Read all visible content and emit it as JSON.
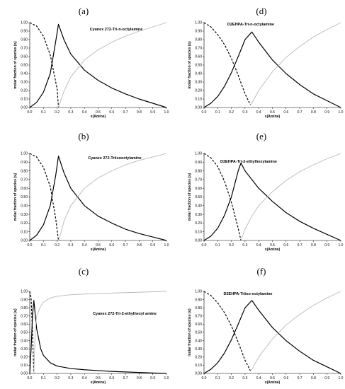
{
  "panel_letters": [
    "(a)",
    "(b)",
    "(c)",
    "(d)",
    "(e)",
    "(f)"
  ],
  "chart_data": [
    {
      "type": "line",
      "letter": "(a)",
      "title": "Cyanex 272-Tri-n-octylamine",
      "xlabel": "x(Amine)",
      "ylabel": "molar fraction of species (xᵢ)",
      "xlim": [
        0,
        1
      ],
      "ylim": [
        0,
        1
      ],
      "grid": false,
      "legend": "none",
      "xticks": [
        "0.0",
        "0.1",
        "0.2",
        "0.3",
        "0.4",
        "0.5",
        "0.6",
        "0.7",
        "0.8",
        "0.9",
        "1.0"
      ],
      "yticks": [
        "0.00",
        "0.10",
        "0.20",
        "0.30",
        "0.40",
        "0.50",
        "0.60",
        "0.70",
        "0.80",
        "0.90",
        "1.00"
      ],
      "series": [
        {
          "style": "dashed",
          "color": "#000000",
          "x": [
            0,
            0.05,
            0.1,
            0.15,
            0.2,
            0.21
          ],
          "y": [
            1.0,
            0.96,
            0.84,
            0.62,
            0.22,
            0.0
          ]
        },
        {
          "style": "solid",
          "color": "#000000",
          "x": [
            0,
            0.05,
            0.1,
            0.15,
            0.19,
            0.21,
            0.25,
            0.3,
            0.4,
            0.5,
            0.6,
            0.7,
            0.8,
            0.9,
            1.0
          ],
          "y": [
            0.0,
            0.06,
            0.18,
            0.4,
            0.78,
            0.98,
            0.8,
            0.63,
            0.44,
            0.32,
            0.23,
            0.16,
            0.1,
            0.05,
            0.0
          ]
        },
        {
          "style": "solid",
          "color": "#b8b8b8",
          "x": [
            0.21,
            0.23,
            0.25,
            0.3,
            0.4,
            0.5,
            0.6,
            0.7,
            0.8,
            0.9,
            1.0
          ],
          "y": [
            0.0,
            0.1,
            0.19,
            0.36,
            0.56,
            0.68,
            0.77,
            0.84,
            0.9,
            0.95,
            1.0
          ]
        }
      ]
    },
    {
      "type": "line",
      "letter": "(b)",
      "title": "Cyanex 272-Triisooctylamine",
      "xlabel": "x(Amine)",
      "ylabel": "molar fraction of species (xᵢ)",
      "xlim": [
        0,
        1
      ],
      "ylim": [
        0,
        1
      ],
      "grid": false,
      "legend": "none",
      "xticks": [
        "0.0",
        "0.1",
        "0.2",
        "0.3",
        "0.4",
        "0.5",
        "0.6",
        "0.7",
        "0.8",
        "0.9",
        "1.0"
      ],
      "yticks": [
        "0.00",
        "0.10",
        "0.20",
        "0.30",
        "0.40",
        "0.50",
        "0.60",
        "0.70",
        "0.80",
        "0.90",
        "1.00"
      ],
      "series": [
        {
          "style": "dashed",
          "color": "#000000",
          "x": [
            0,
            0.05,
            0.1,
            0.15,
            0.19,
            0.21
          ],
          "y": [
            1.0,
            0.96,
            0.84,
            0.62,
            0.25,
            0.0
          ]
        },
        {
          "style": "solid",
          "color": "#000000",
          "x": [
            0,
            0.05,
            0.1,
            0.15,
            0.19,
            0.21,
            0.25,
            0.3,
            0.4,
            0.5,
            0.6,
            0.7,
            0.8,
            0.9,
            1.0
          ],
          "y": [
            0.0,
            0.06,
            0.18,
            0.4,
            0.75,
            0.97,
            0.78,
            0.6,
            0.4,
            0.28,
            0.2,
            0.13,
            0.08,
            0.04,
            0.0
          ]
        },
        {
          "style": "solid",
          "color": "#b8b8b8",
          "x": [
            0.21,
            0.23,
            0.25,
            0.3,
            0.4,
            0.5,
            0.6,
            0.7,
            0.8,
            0.9,
            1.0
          ],
          "y": [
            0.0,
            0.1,
            0.22,
            0.4,
            0.6,
            0.72,
            0.8,
            0.87,
            0.92,
            0.96,
            1.0
          ]
        }
      ]
    },
    {
      "type": "line",
      "letter": "(c)",
      "title": "Cyanex 272-Tri-2-ethylhexyl amine",
      "xlabel": "x(Amine)",
      "ylabel": "molar fraction of species (xᵢ)",
      "xlim": [
        0,
        1
      ],
      "ylim": [
        0,
        1
      ],
      "grid": false,
      "legend": "none",
      "xticks": [
        "0.0",
        "0.1",
        "0.2",
        "0.3",
        "0.4",
        "0.5",
        "0.6",
        "0.7",
        "0.8",
        "0.9",
        "1.0"
      ],
      "yticks": [
        "0.00",
        "0.10",
        "0.20",
        "0.30",
        "0.40",
        "0.50",
        "0.60",
        "0.70",
        "0.80",
        "0.90",
        "1.00"
      ],
      "series": [
        {
          "style": "dashed",
          "color": "#000000",
          "x": [
            0,
            0.01,
            0.02,
            0.03
          ],
          "y": [
            1.0,
            0.92,
            0.5,
            0.0
          ]
        },
        {
          "style": "solid",
          "color": "#000000",
          "x": [
            0,
            0.01,
            0.02,
            0.03,
            0.05,
            0.08,
            0.1,
            0.15,
            0.2,
            0.3,
            0.4,
            0.5,
            0.6,
            0.7,
            0.8,
            0.9,
            1.0
          ],
          "y": [
            0.0,
            0.3,
            0.7,
            0.89,
            0.55,
            0.3,
            0.22,
            0.13,
            0.09,
            0.06,
            0.045,
            0.035,
            0.025,
            0.018,
            0.012,
            0.006,
            0.0
          ]
        },
        {
          "style": "solid",
          "color": "#b8b8b8",
          "x": [
            0.03,
            0.04,
            0.05,
            0.08,
            0.1,
            0.15,
            0.2,
            0.3,
            0.5,
            0.7,
            1.0
          ],
          "y": [
            0.0,
            0.5,
            0.7,
            0.82,
            0.87,
            0.92,
            0.94,
            0.96,
            0.975,
            0.985,
            1.0
          ]
        }
      ]
    },
    {
      "type": "line",
      "letter": "(d)",
      "title": "D2EHPA-Tri-n-octylamine",
      "xlabel": "x(Amine)",
      "ylabel": "molar fraction of species (xᵢ)",
      "xlim": [
        0,
        1
      ],
      "ylim": [
        0,
        1
      ],
      "grid": false,
      "legend": "none",
      "xticks": [
        "0.0",
        "0.1",
        "0.2",
        "0.3",
        "0.4",
        "0.5",
        "0.6",
        "0.7",
        "0.8",
        "0.9",
        "1.0"
      ],
      "yticks": [
        "0.00",
        "0.10",
        "0.20",
        "0.30",
        "0.40",
        "0.50",
        "0.60",
        "0.70",
        "0.80",
        "0.90",
        "1.00"
      ],
      "series": [
        {
          "style": "dashed",
          "color": "#000000",
          "x": [
            0,
            0.05,
            0.1,
            0.15,
            0.2,
            0.25,
            0.3,
            0.34
          ],
          "y": [
            1.0,
            0.95,
            0.86,
            0.74,
            0.58,
            0.38,
            0.16,
            0.03
          ]
        },
        {
          "style": "solid",
          "color": "#000000",
          "x": [
            0,
            0.05,
            0.1,
            0.15,
            0.2,
            0.25,
            0.3,
            0.35,
            0.4,
            0.5,
            0.6,
            0.7,
            0.8,
            0.9,
            1.0
          ],
          "y": [
            0.0,
            0.05,
            0.13,
            0.25,
            0.41,
            0.6,
            0.8,
            0.89,
            0.77,
            0.56,
            0.4,
            0.27,
            0.16,
            0.08,
            0.0
          ]
        },
        {
          "style": "solid",
          "color": "#b8b8b8",
          "x": [
            0.34,
            0.35,
            0.4,
            0.5,
            0.6,
            0.7,
            0.8,
            0.9,
            1.0
          ],
          "y": [
            0.03,
            0.05,
            0.2,
            0.42,
            0.59,
            0.72,
            0.83,
            0.92,
            1.0
          ]
        }
      ]
    },
    {
      "type": "line",
      "letter": "(e)",
      "title": "D2EHPA-Tri-2-ethylhexylamine",
      "xlabel": "x(Amine)",
      "ylabel": "molar fraction of species (xᵢ)",
      "xlim": [
        0,
        1
      ],
      "ylim": [
        0,
        1
      ],
      "grid": false,
      "legend": "none",
      "xticks": [
        "0.0",
        "0.1",
        "0.2",
        "0.3",
        "0.4",
        "0.5",
        "0.6",
        "0.7",
        "0.8",
        "0.9",
        "1.0"
      ],
      "yticks": [
        "0.00",
        "0.10",
        "0.20",
        "0.30",
        "0.40",
        "0.50",
        "0.60",
        "0.70",
        "0.80",
        "0.90",
        "1.00"
      ],
      "series": [
        {
          "style": "dashed",
          "color": "#000000",
          "x": [
            0,
            0.05,
            0.1,
            0.15,
            0.2,
            0.25,
            0.27
          ],
          "y": [
            1.0,
            0.95,
            0.85,
            0.68,
            0.44,
            0.14,
            0.0
          ]
        },
        {
          "style": "solid",
          "color": "#000000",
          "x": [
            0,
            0.05,
            0.1,
            0.15,
            0.2,
            0.25,
            0.27,
            0.3,
            0.4,
            0.5,
            0.6,
            0.7,
            0.8,
            0.9,
            1.0
          ],
          "y": [
            0.0,
            0.05,
            0.14,
            0.29,
            0.5,
            0.8,
            0.89,
            0.8,
            0.6,
            0.45,
            0.32,
            0.22,
            0.14,
            0.07,
            0.0
          ]
        },
        {
          "style": "solid",
          "color": "#b8b8b8",
          "x": [
            0.27,
            0.3,
            0.35,
            0.4,
            0.5,
            0.6,
            0.7,
            0.8,
            0.9,
            1.0
          ],
          "y": [
            0.0,
            0.13,
            0.28,
            0.4,
            0.56,
            0.69,
            0.79,
            0.87,
            0.94,
            1.0
          ]
        }
      ]
    },
    {
      "type": "line",
      "letter": "(f)",
      "title": "D2EHPA-Triiso-octylamine",
      "xlabel": "x(Amine)",
      "ylabel": "molar fraction of species (xᵢ)",
      "xlim": [
        0,
        1
      ],
      "ylim": [
        0,
        1
      ],
      "grid": false,
      "legend": "none",
      "xticks": [
        "0.0",
        "0.1",
        "0.2",
        "0.3",
        "0.4",
        "0.5",
        "0.6",
        "0.7",
        "0.8",
        "0.9",
        "1.0"
      ],
      "yticks": [
        "0.00",
        "0.10",
        "0.20",
        "0.30",
        "0.40",
        "0.50",
        "0.60",
        "0.70",
        "0.80",
        "0.90",
        "1.00"
      ],
      "series": [
        {
          "style": "dashed",
          "color": "#000000",
          "x": [
            0,
            0.05,
            0.1,
            0.15,
            0.2,
            0.25,
            0.3,
            0.34
          ],
          "y": [
            1.0,
            0.95,
            0.86,
            0.74,
            0.58,
            0.38,
            0.16,
            0.03
          ]
        },
        {
          "style": "solid",
          "color": "#000000",
          "x": [
            0,
            0.05,
            0.1,
            0.15,
            0.2,
            0.25,
            0.3,
            0.35,
            0.4,
            0.5,
            0.6,
            0.7,
            0.8,
            0.9,
            1.0
          ],
          "y": [
            0.0,
            0.05,
            0.13,
            0.25,
            0.41,
            0.6,
            0.8,
            0.89,
            0.77,
            0.56,
            0.4,
            0.27,
            0.16,
            0.08,
            0.0
          ]
        },
        {
          "style": "solid",
          "color": "#b8b8b8",
          "x": [
            0.34,
            0.35,
            0.4,
            0.5,
            0.6,
            0.7,
            0.8,
            0.9,
            1.0
          ],
          "y": [
            0.03,
            0.05,
            0.2,
            0.42,
            0.59,
            0.72,
            0.83,
            0.92,
            1.0
          ]
        }
      ]
    }
  ]
}
